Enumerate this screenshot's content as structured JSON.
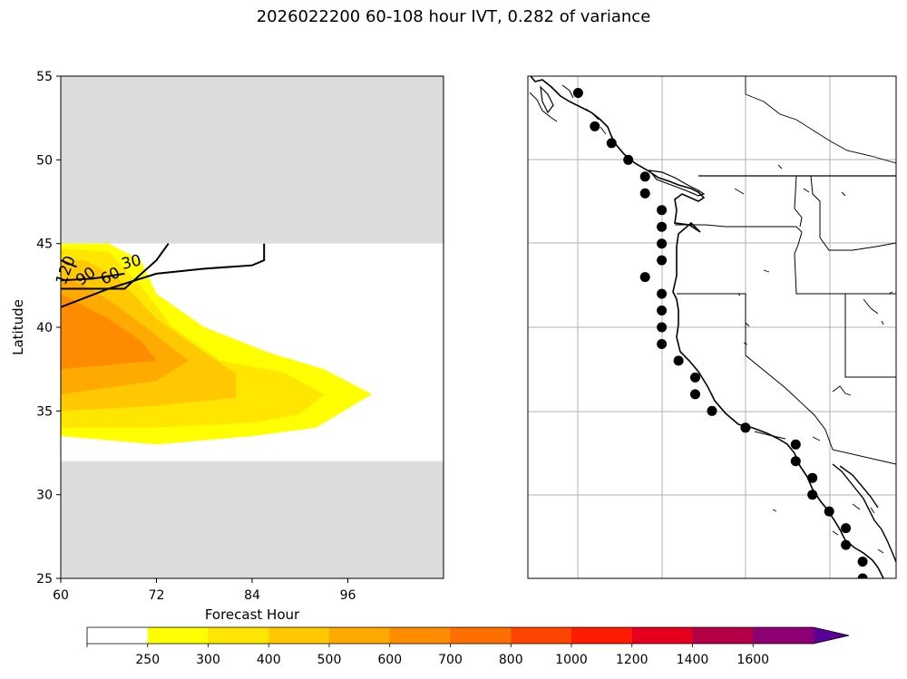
{
  "title": "2026022200 60-108 hour IVT, 0.282 of variance",
  "chart_data": {
    "type": "contourf",
    "left_panel": {
      "xlabel": "Forecast Hour",
      "ylabel": "Latitude",
      "xlim": [
        60,
        108
      ],
      "ylim": [
        25,
        55
      ],
      "xticks": [
        "60",
        "72",
        "84",
        "96"
      ],
      "yticks": [
        "25",
        "30",
        "35",
        "40",
        "45",
        "50",
        "55"
      ],
      "no_data_lat_ranges": [
        [
          45,
          55
        ],
        [
          25,
          32
        ]
      ],
      "filled_regions": [
        {
          "level": 250,
          "color": "#ffff00",
          "points": [
            [
              60,
              33.5
            ],
            [
              72,
              33
            ],
            [
              84,
              33.5
            ],
            [
              92,
              34
            ],
            [
              99,
              36
            ],
            [
              93,
              37.5
            ],
            [
              86,
              38.5
            ],
            [
              78,
              40
            ],
            [
              72,
              42
            ],
            [
              70,
              44
            ],
            [
              66,
              45
            ],
            [
              60,
              45
            ]
          ]
        },
        {
          "level": 300,
          "color": "#ffe600",
          "points": [
            [
              60,
              34
            ],
            [
              72,
              34
            ],
            [
              84,
              34.3
            ],
            [
              90,
              34.8
            ],
            [
              93,
              36
            ],
            [
              88,
              37.3
            ],
            [
              80,
              38
            ],
            [
              74,
              40
            ],
            [
              70,
              42.5
            ],
            [
              66,
              44.5
            ],
            [
              60,
              44.7
            ]
          ]
        },
        {
          "level": 400,
          "color": "#ffc800",
          "points": [
            [
              60,
              35
            ],
            [
              72,
              35.3
            ],
            [
              82,
              35.8
            ],
            [
              82,
              37.2
            ],
            [
              78,
              38.5
            ],
            [
              72,
              40.5
            ],
            [
              67,
              43
            ],
            [
              63,
              44
            ],
            [
              60,
              44
            ]
          ]
        },
        {
          "level": 500,
          "color": "#ffaa00",
          "points": [
            [
              60,
              36
            ],
            [
              72,
              36.8
            ],
            [
              76,
              38
            ],
            [
              72,
              39.5
            ],
            [
              67,
              41.3
            ],
            [
              63,
              42.5
            ],
            [
              60,
              43
            ]
          ]
        },
        {
          "level": 600,
          "color": "#ff8c00",
          "points": [
            [
              60,
              37.5
            ],
            [
              72,
              38
            ],
            [
              70,
              39.2
            ],
            [
              66,
              40.5
            ],
            [
              62,
              41.5
            ],
            [
              60,
              42
            ]
          ]
        }
      ],
      "contour_lines": [
        {
          "level": 30,
          "label": "30",
          "points": [
            [
              60,
              41.2
            ],
            [
              66,
              42.3
            ],
            [
              72,
              43.2
            ],
            [
              78,
              43.5
            ],
            [
              84,
              43.7
            ],
            [
              85.5,
              44
            ],
            [
              85.5,
              45
            ]
          ]
        },
        {
          "level": 60,
          "label": "60",
          "points": [
            [
              60,
              42.3
            ],
            [
              68,
              42.3
            ],
            [
              72,
              44
            ],
            [
              73.5,
              45
            ]
          ]
        },
        {
          "level": 90,
          "label": "90",
          "points": [
            [
              60,
              42.8
            ],
            [
              64,
              42.9
            ],
            [
              68,
              43.2
            ]
          ]
        },
        {
          "level": 120,
          "label": "120",
          "points": [
            [
              60,
              44
            ],
            [
              62,
              43.6
            ]
          ]
        }
      ]
    },
    "right_panel": {
      "type": "map",
      "lon_range": [
        -135,
        -113
      ],
      "lat_range": [
        25,
        55
      ],
      "gridlines": true,
      "points": [
        [
          -132,
          54
        ],
        [
          -131,
          52
        ],
        [
          -130,
          51
        ],
        [
          -129,
          50
        ],
        [
          -128,
          49
        ],
        [
          -128,
          48
        ],
        [
          -127,
          47
        ],
        [
          -127,
          46
        ],
        [
          -127,
          45
        ],
        [
          -127,
          44
        ],
        [
          -128,
          43
        ],
        [
          -127,
          42
        ],
        [
          -127,
          41
        ],
        [
          -127,
          40
        ],
        [
          -127,
          39
        ],
        [
          -126,
          38
        ],
        [
          -125,
          37
        ],
        [
          -125,
          36
        ],
        [
          -124,
          35
        ],
        [
          -122,
          34
        ],
        [
          -119,
          33
        ],
        [
          -119,
          32
        ],
        [
          -118,
          31
        ],
        [
          -118,
          30
        ],
        [
          -117,
          29
        ],
        [
          -116,
          28
        ],
        [
          -116,
          27
        ],
        [
          -115,
          26
        ],
        [
          -115,
          25
        ]
      ]
    },
    "colorbar": {
      "levels": [
        "250",
        "300",
        "400",
        "500",
        "600",
        "700",
        "800",
        "1000",
        "1200",
        "1400",
        "1600"
      ],
      "colors": [
        "#ffffff",
        "#ffff00",
        "#ffe600",
        "#ffc800",
        "#ffaa00",
        "#ff8c00",
        "#ff6e00",
        "#ff4400",
        "#ff1a00",
        "#e6001e",
        "#b40046",
        "#8c0073",
        "#5a0096"
      ],
      "extend": "max"
    }
  }
}
